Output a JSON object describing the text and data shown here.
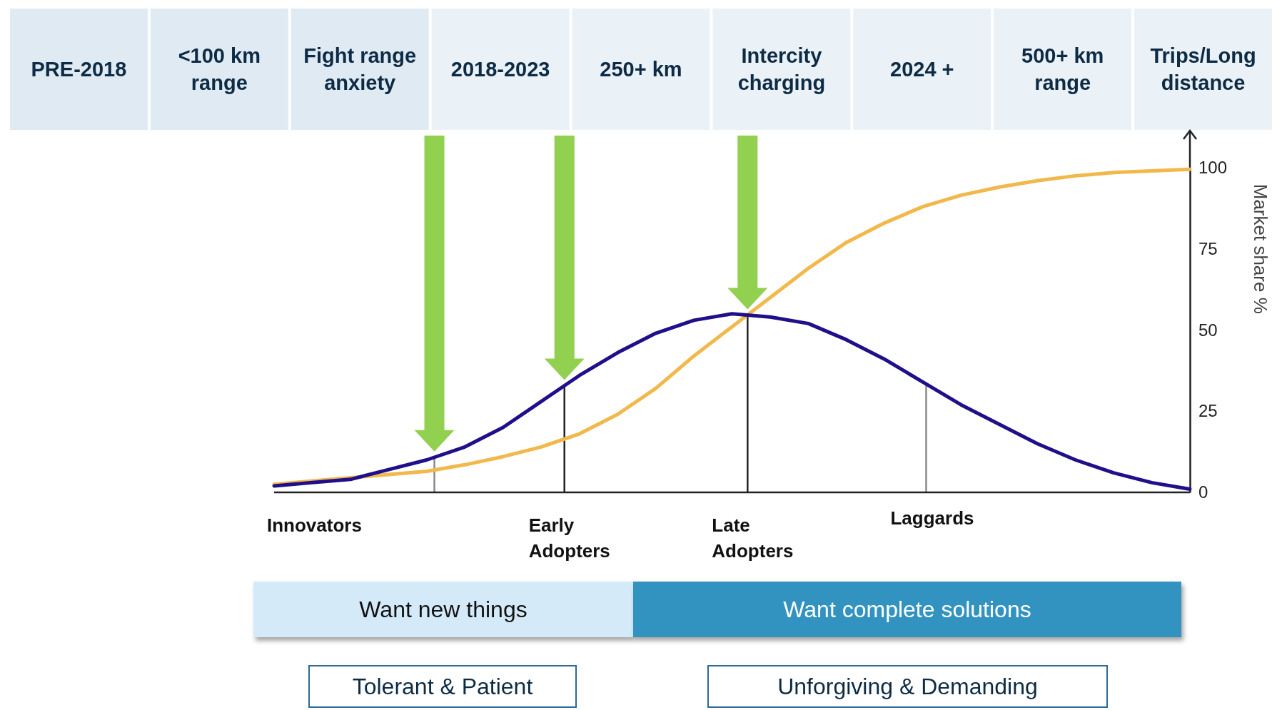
{
  "chart_data": {
    "type": "line",
    "ylabel": "Market share %",
    "categories": [
      null,
      null,
      null,
      null,
      null,
      null,
      null,
      null,
      null,
      null,
      null,
      null,
      null,
      null,
      null,
      null,
      null,
      null,
      null,
      null,
      null,
      null,
      null,
      null,
      null
    ],
    "ylim": [
      0,
      100
    ],
    "yticks": [
      0,
      25,
      50,
      75,
      100
    ],
    "tick_labels": "y",
    "series": [
      {
        "color": "#f2b84b",
        "values": [
          2.5,
          3.5,
          4.5,
          5.5,
          6.5,
          8.5,
          11,
          14,
          18,
          24,
          32,
          42,
          51,
          60,
          69,
          77,
          83,
          88,
          91.5,
          94,
          96,
          97.5,
          98.5,
          99,
          99.5
        ]
      },
      {
        "color": "#1f0f8a",
        "values": [
          2,
          3,
          4,
          7,
          10,
          14,
          20,
          28,
          36,
          43,
          49,
          53,
          55,
          54,
          52,
          47,
          41,
          34,
          27,
          21,
          15,
          10,
          6,
          3,
          1
        ]
      }
    ],
    "annotations": [
      "PRE-2018",
      "<100 km range",
      "Fight range anxiety",
      "2018-2023",
      "250+ km",
      "Intercity charging",
      "2024 +",
      "500+ km range",
      "Trips/Long distance",
      "Innovators",
      "Early Adopters",
      "Late Adopters",
      "Laggards",
      "Want new things",
      "Want complete solutions",
      "Tolerant & Patient",
      "Unforgiving & Demanding"
    ]
  }
}
